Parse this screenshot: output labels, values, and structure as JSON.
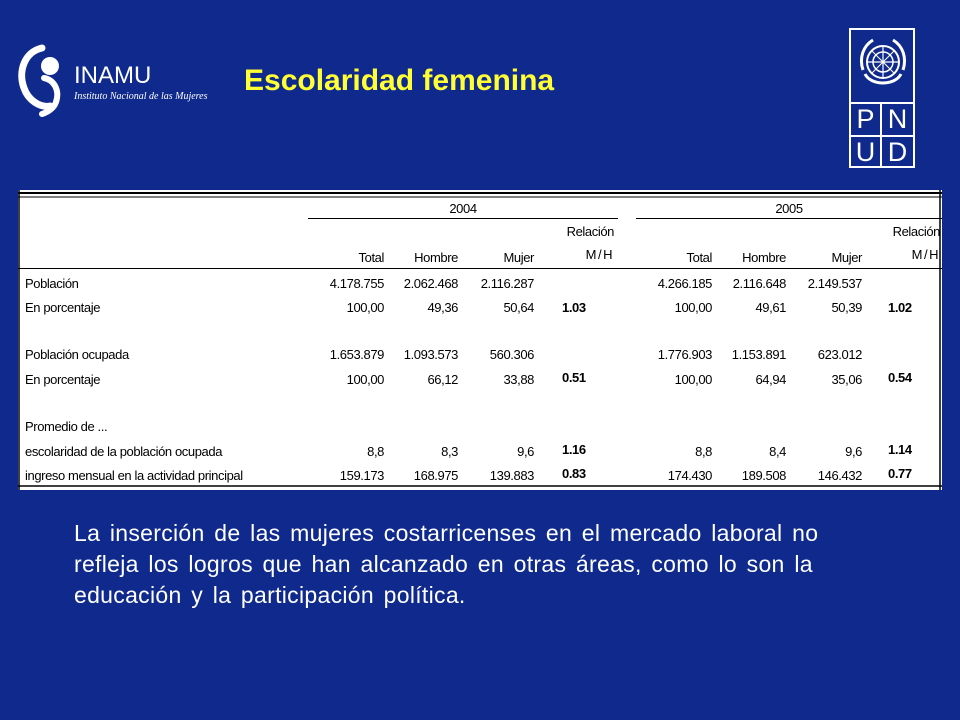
{
  "title": "Escolaridad femenina",
  "inamu_logo": {
    "name": "INAMU",
    "subtitle": "Instituto Nacional de las Mujeres"
  },
  "pnud_logo": {
    "letters": [
      "P",
      "N",
      "U",
      "D"
    ]
  },
  "table": {
    "years": [
      "2004",
      "2005"
    ],
    "col_headers": {
      "total": "Total",
      "hombre": "Hombre",
      "mujer": "Mujer",
      "relacion_1": "Relación",
      "relacion_2": "M/H"
    },
    "rows": [
      {
        "label": "Población",
        "v2004": [
          "4.178.755",
          "2.062.468",
          "2.116.287",
          ""
        ],
        "v2005": [
          "4.266.185",
          "2.116.648",
          "2.149.537",
          ""
        ]
      },
      {
        "label": "En porcentaje",
        "v2004": [
          "100,00",
          "49,36",
          "50,64",
          "1.03"
        ],
        "v2005": [
          "100,00",
          "49,61",
          "50,39",
          "1.02"
        ]
      },
      {
        "label": "Población ocupada",
        "v2004": [
          "1.653.879",
          "1.093.573",
          "560.306",
          ""
        ],
        "v2005": [
          "1.776.903",
          "1.153.891",
          "623.012",
          ""
        ]
      },
      {
        "label": "En porcentaje",
        "v2004": [
          "100,00",
          "66,12",
          "33,88",
          "0.51"
        ],
        "v2005": [
          "100,00",
          "64,94",
          "35,06",
          "0.54"
        ]
      },
      {
        "label": "Promedio de ...",
        "v2004": [
          "",
          "",
          "",
          ""
        ],
        "v2005": [
          "",
          "",
          "",
          ""
        ]
      },
      {
        "label": "escolaridad de la población ocupada",
        "v2004": [
          "8,8",
          "8,3",
          "9,6",
          "1.16"
        ],
        "v2005": [
          "8,8",
          "8,4",
          "9,6",
          "1.14"
        ]
      },
      {
        "label": "ingreso mensual en la actividad principal",
        "v2004": [
          "159.173",
          "168.975",
          "139.883",
          "0.83"
        ],
        "v2005": [
          "174.430",
          "189.508",
          "146.432",
          "0.77"
        ]
      }
    ]
  },
  "paragraph": "La inserción de las mujeres costarricenses en el mercado laboral no refleja los logros que han alcanzado en otras áreas, como lo son la educación y la participación política.",
  "colors": {
    "background": "#0f2a8c",
    "title": "#ffff33",
    "text": "#ffffff"
  }
}
